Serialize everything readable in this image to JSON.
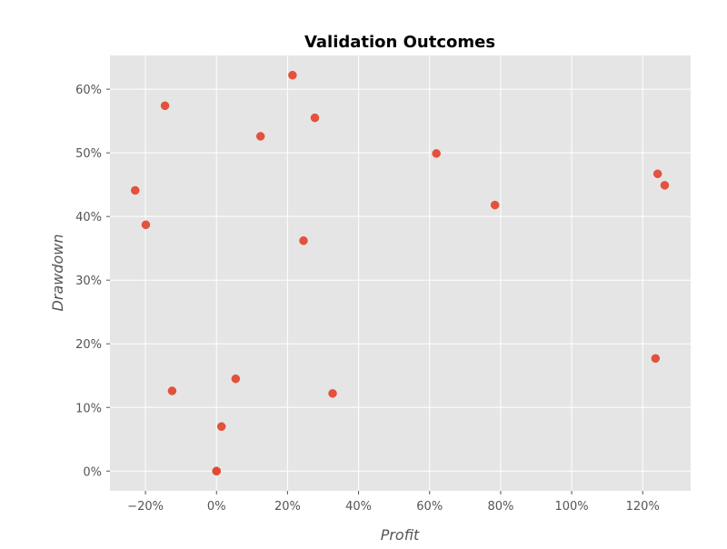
{
  "chart_data": {
    "type": "scatter",
    "title": "Validation Outcomes",
    "xlabel": "Profit",
    "ylabel": "Drawdown",
    "xlim": [
      -0.3,
      1.335
    ],
    "ylim": [
      -0.031,
      0.653
    ],
    "x_ticks": [
      -0.2,
      0,
      0.2,
      0.4,
      0.6,
      0.8,
      1.0,
      1.2
    ],
    "x_tick_labels": [
      "−20%",
      "0%",
      "20%",
      "40%",
      "60%",
      "80%",
      "100%",
      "120%"
    ],
    "y_ticks": [
      0,
      0.1,
      0.2,
      0.3,
      0.4,
      0.5,
      0.6
    ],
    "y_tick_labels": [
      "0%",
      "10%",
      "20%",
      "30%",
      "40%",
      "50%",
      "60%"
    ],
    "grid": true,
    "series": [
      {
        "points": [
          {
            "x": 0.214,
            "y": 0.622
          },
          {
            "x": -0.145,
            "y": 0.574
          },
          {
            "x": 0.277,
            "y": 0.555
          },
          {
            "x": 0.124,
            "y": 0.526
          },
          {
            "x": 0.619,
            "y": 0.499
          },
          {
            "x": 1.242,
            "y": 0.467
          },
          {
            "x": 1.262,
            "y": 0.449
          },
          {
            "x": -0.229,
            "y": 0.441
          },
          {
            "x": 0.784,
            "y": 0.418
          },
          {
            "x": -0.199,
            "y": 0.387
          },
          {
            "x": 0.245,
            "y": 0.362
          },
          {
            "x": 1.236,
            "y": 0.177
          },
          {
            "x": 0.054,
            "y": 0.145
          },
          {
            "x": -0.125,
            "y": 0.126
          },
          {
            "x": 0.327,
            "y": 0.122
          },
          {
            "x": 0.014,
            "y": 0.07
          },
          {
            "x": 0.0,
            "y": 0.0
          },
          {
            "x": 0.0,
            "y": 0.0
          }
        ]
      }
    ]
  },
  "colors": {
    "plot_background": "#e5e5e5",
    "grid": "#ffffff",
    "marker": "#e24a33",
    "tick_text": "#555555",
    "title_text": "#000000"
  }
}
